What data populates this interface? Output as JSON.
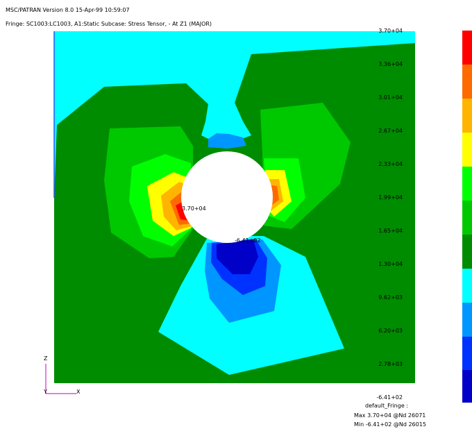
{
  "header": {
    "title": "MSC/PATRAN Version 8.0 15-Apr-99 10:59:07",
    "fringe_desc": "Fringe: SC1003:LC1003, A1:Static Subcase: Stress Tensor, - At Z1 (MAJOR)"
  },
  "legend": {
    "ticks": [
      "3.70+04",
      "3.36+04",
      "3.01+04",
      "2.67+04",
      "2.33+04",
      "1.99+04",
      "1.65+04",
      "1.30+04",
      "9.62+03",
      "6.20+03",
      "2.78+03",
      "-6.41+02"
    ],
    "colors": [
      "#ff0000",
      "#ff6a00",
      "#ffb400",
      "#ffff00",
      "#00ff00",
      "#00c800",
      "#008c00",
      "#00ffff",
      "#0096ff",
      "#0032ff",
      "#0000c8"
    ]
  },
  "annotations": {
    "max_marker": "3.70+04",
    "min_marker": "-6.41+02"
  },
  "footer": {
    "name": "default_Fringe :",
    "max": "Max 3.70+04 @Nd 26071",
    "min": "Min -6.41+02 @Nd 26015"
  },
  "axes": {
    "z": "Z",
    "y": "Y",
    "x": "X"
  }
}
